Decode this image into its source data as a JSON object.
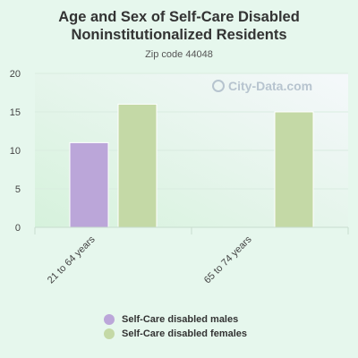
{
  "chart_data": {
    "type": "bar",
    "title": "Age and Sex of Self-Care Disabled Noninstitutionalized Residents",
    "subtitle": "Zip code 44048",
    "categories": [
      "21 to 64 years",
      "65 to 74 years"
    ],
    "series": [
      {
        "name": "Self-Care disabled males",
        "values": [
          11,
          0
        ],
        "color": "#bba6d9"
      },
      {
        "name": "Self-Care disabled females",
        "values": [
          16,
          15
        ],
        "color": "#c4d9a6"
      }
    ],
    "ylim": [
      0,
      20
    ],
    "yticks": [
      0,
      5,
      10,
      15,
      20
    ],
    "grid": true,
    "legend_position": "bottom",
    "watermark": "City-Data.com"
  }
}
